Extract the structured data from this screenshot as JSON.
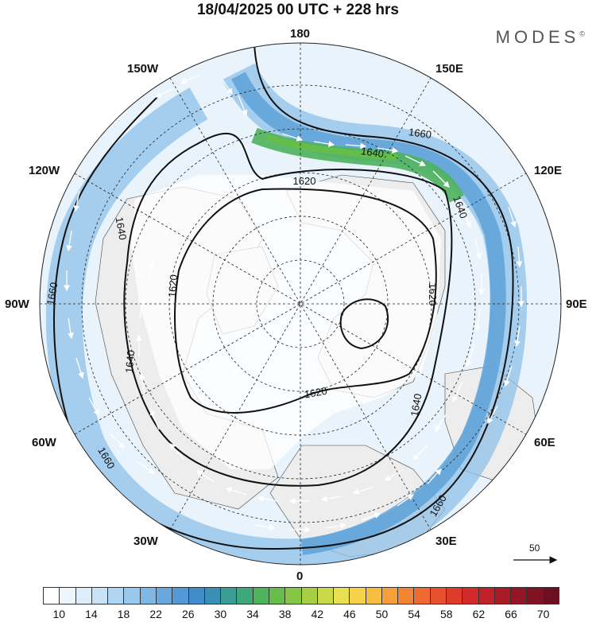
{
  "title": "18/04/2025  00 UTC  + 228 hrs",
  "brand": "MODES",
  "brand_mark": "©",
  "longitude_labels": {
    "top": "180",
    "bottom": "0",
    "left": "90W",
    "right": "90E",
    "ul1": "150W",
    "ul2": "120W",
    "ur1": "150E",
    "ur2": "120E",
    "ll1": "60W",
    "ll2": "30W",
    "lr1": "60E",
    "lr2": "30E"
  },
  "contour_labels": [
    "1620",
    "1620",
    "1620",
    "1620",
    "1640",
    "1640",
    "1640",
    "1640",
    "1640",
    "1660",
    "1660",
    "1660",
    "1660"
  ],
  "reference_vector": "50",
  "colorbar": {
    "ticks": [
      "10",
      "14",
      "18",
      "22",
      "26",
      "30",
      "34",
      "38",
      "42",
      "46",
      "50",
      "54",
      "58",
      "62",
      "66",
      "70"
    ],
    "colors": [
      "#ffffff",
      "#eef6fd",
      "#ddeefa",
      "#c8e3f7",
      "#b0d6f3",
      "#98c8ee",
      "#7fb8e6",
      "#68a8de",
      "#5299d6",
      "#418ccb",
      "#3a8fb5",
      "#3c9c96",
      "#3fa878",
      "#4db35c",
      "#67bd4a",
      "#85c644",
      "#a6cf44",
      "#c9d94a",
      "#e8e050",
      "#f5d24a",
      "#f7bc40",
      "#f5a03a",
      "#f28534",
      "#ee6a30",
      "#e8512d",
      "#df3b2b",
      "#d22a2a",
      "#c0212a",
      "#aa1b28",
      "#941626",
      "#801224",
      "#6d0e22"
    ]
  }
}
